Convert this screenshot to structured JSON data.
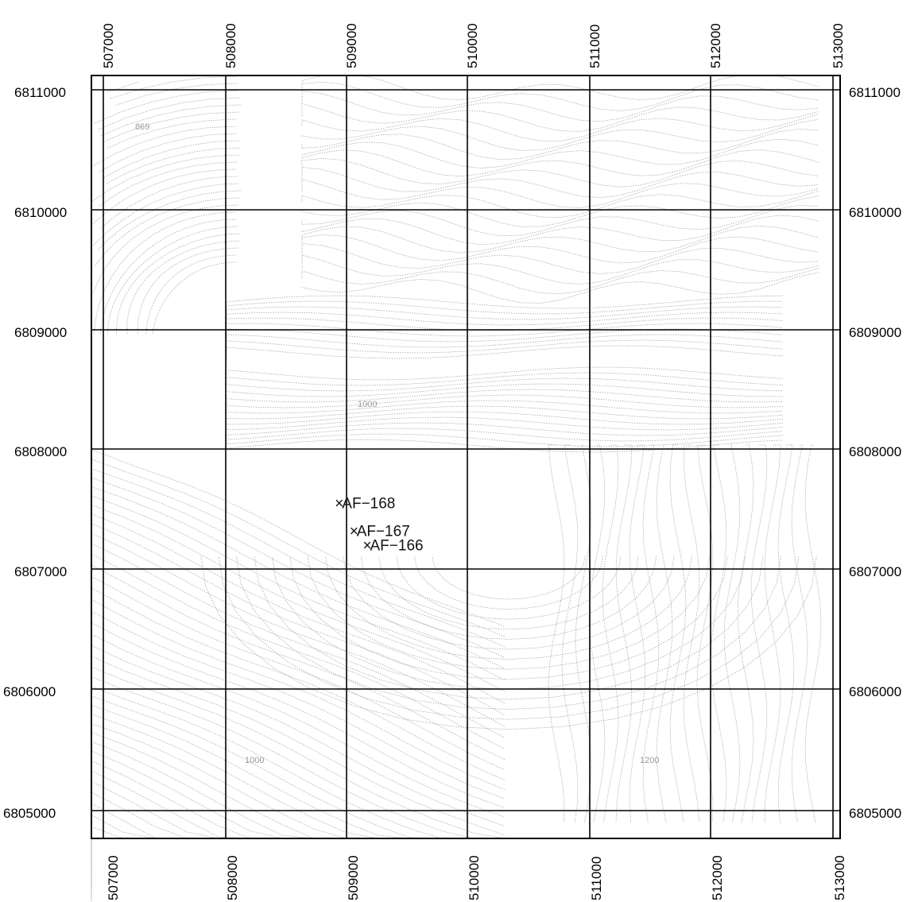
{
  "map": {
    "easting_ticks": [
      "507000",
      "508000",
      "509000",
      "510000",
      "511000",
      "512000",
      "513000"
    ],
    "northing_ticks": [
      "6811000",
      "6810000",
      "6809000",
      "6808000",
      "6807000",
      "6806000",
      "6805000"
    ],
    "sites": [
      {
        "label": "AF−168",
        "easting": 508930,
        "northing": 6807550
      },
      {
        "label": "AF−167",
        "easting": 509050,
        "northing": 6807320
      },
      {
        "label": "AF−166",
        "easting": 509160,
        "northing": 6807200
      }
    ],
    "contour_labels": [
      "869",
      "1000",
      "1000",
      "1200"
    ],
    "colors": {
      "grid": "#000000",
      "contour": "#a8a8a8",
      "frame": "#000000"
    }
  }
}
